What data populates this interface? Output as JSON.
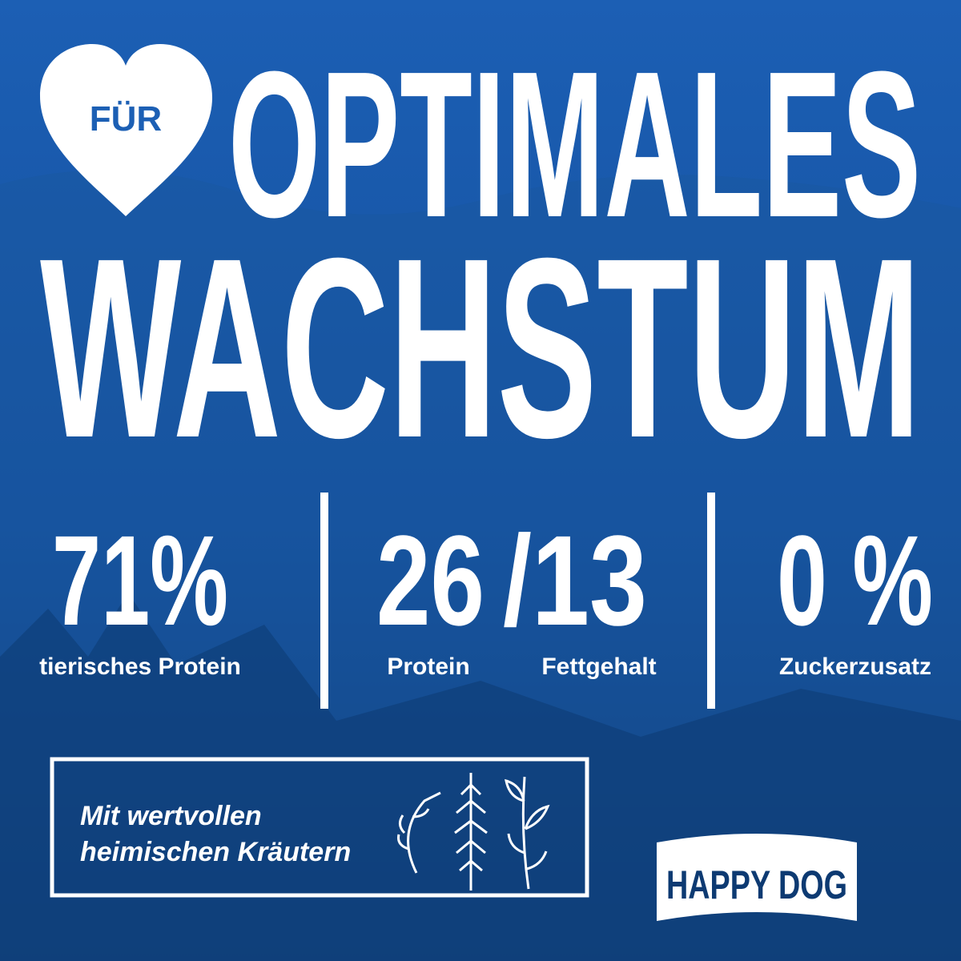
{
  "heart_label": "FÜR",
  "headline": [
    "OPTIMALES",
    "WACHSTUM"
  ],
  "stats": [
    {
      "value": "71%",
      "label": "tierisches Protein"
    },
    {
      "value": "26",
      "label": "Protein"
    },
    {
      "value": "/13",
      "label": "Fettgehalt"
    },
    {
      "value": "0 %",
      "label": "Zuckerzusatz"
    }
  ],
  "herbs_box": [
    "Mit wertvollen",
    "heimischen Kräutern"
  ],
  "logo": "HAPPY DOG"
}
